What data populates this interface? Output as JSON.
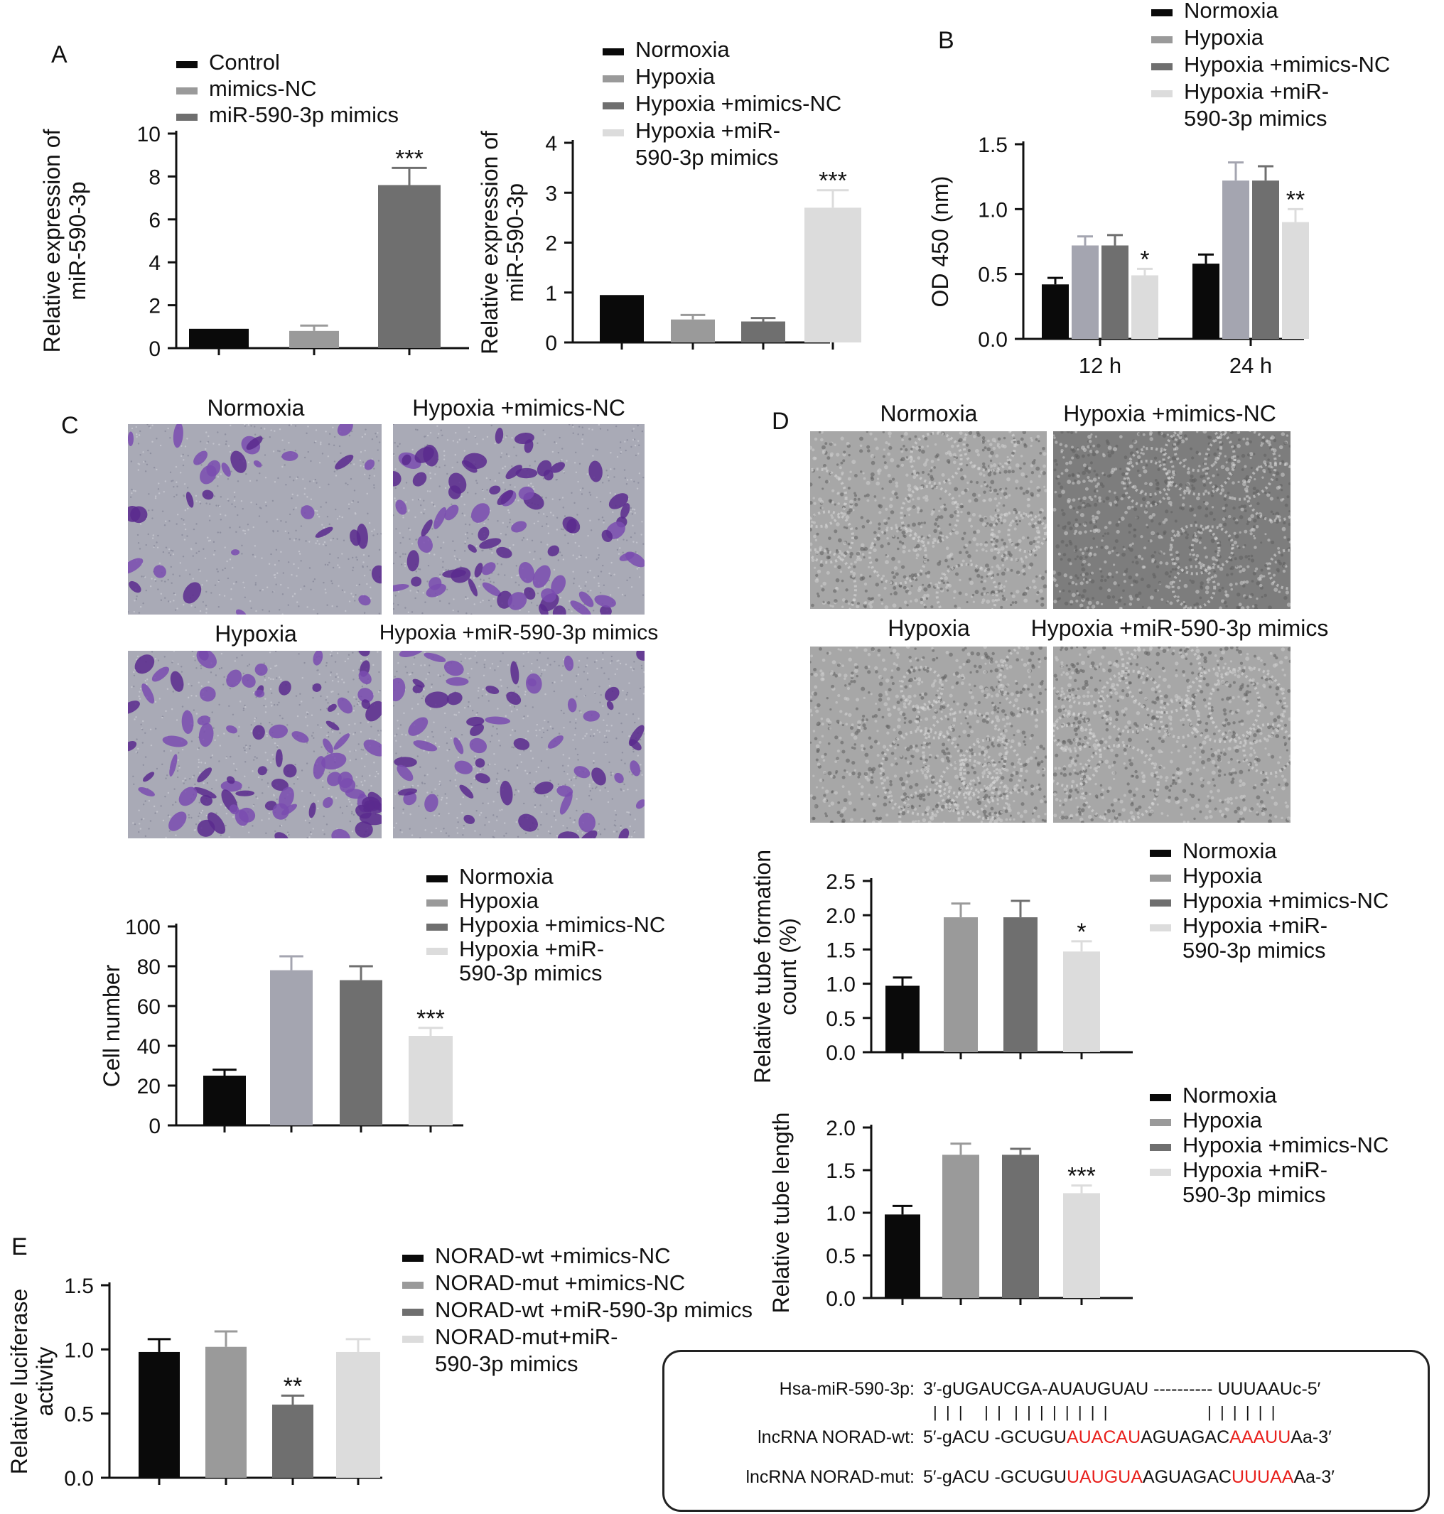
{
  "panels": {
    "A": "A",
    "B": "B",
    "C": "C",
    "D": "D",
    "E": "E"
  },
  "colors": {
    "black": "#0a0a0a",
    "lightgray": "#9a9a9a",
    "darkgray": "#6f6f6f",
    "verylight": "#dcdcdc",
    "bluegray": "#a4a5b0",
    "purple": "#5b2a8e"
  },
  "charts": [
    {
      "id": "a1",
      "type": "bar",
      "ylabel": [
        "Relative expression of",
        "miR-590-3p"
      ],
      "yticks": [
        0,
        2,
        4,
        6,
        8,
        10
      ],
      "ylim": [
        0,
        10
      ],
      "legend": [
        "Control",
        "mimics-NC",
        "miR-590-3p mimics"
      ],
      "bars": [
        {
          "v": 0.9,
          "e": 0,
          "c": "black"
        },
        {
          "v": 0.8,
          "e": 0.25,
          "c": "lightgray"
        },
        {
          "v": 7.6,
          "e": 0.8,
          "c": "darkgray",
          "sig": "***"
        }
      ]
    },
    {
      "id": "a2",
      "type": "bar",
      "ylabel": [
        "Relative expression of",
        "miR-590-3p"
      ],
      "yticks": [
        0,
        1,
        2,
        3,
        4
      ],
      "ylim": [
        0,
        4
      ],
      "legend": [
        "Normoxia",
        "Hypoxia",
        "Hypoxia +mimics-NC",
        "Hypoxia +miR-",
        "590-3p mimics"
      ],
      "bars": [
        {
          "v": 0.95,
          "e": 0,
          "c": "black"
        },
        {
          "v": 0.46,
          "e": 0.09,
          "c": "lightgray"
        },
        {
          "v": 0.42,
          "e": 0.07,
          "c": "darkgray"
        },
        {
          "v": 2.7,
          "e": 0.35,
          "c": "verylight",
          "sig": "***"
        }
      ]
    },
    {
      "id": "b",
      "type": "grouped-bar",
      "ylabel": [
        "OD 450 (nm)"
      ],
      "yticks": [
        "0.0",
        "0.5",
        "1.0",
        "1.5"
      ],
      "ylim": [
        0,
        1.5
      ],
      "categories": [
        "12 h",
        "24 h"
      ],
      "legend": [
        "Normoxia",
        "Hypoxia",
        "Hypoxia +mimics-NC",
        "Hypoxia +miR-",
        "590-3p mimics"
      ],
      "series": [
        {
          "values": [
            0.42,
            0.58
          ],
          "errors": [
            0.05,
            0.07
          ],
          "c": "black"
        },
        {
          "values": [
            0.72,
            1.22
          ],
          "errors": [
            0.07,
            0.14
          ],
          "c": "bluegray"
        },
        {
          "values": [
            0.72,
            1.22
          ],
          "errors": [
            0.08,
            0.11
          ],
          "c": "darkgray"
        },
        {
          "values": [
            0.49,
            0.9
          ],
          "errors": [
            0.05,
            0.1
          ],
          "c": "verylight",
          "sig": [
            "*",
            "**"
          ]
        }
      ]
    },
    {
      "id": "c",
      "type": "bar",
      "ylabel": [
        "Cell number"
      ],
      "yticks": [
        0,
        20,
        40,
        60,
        80,
        100
      ],
      "ylim": [
        0,
        100
      ],
      "legend": [
        "Normoxia",
        "Hypoxia",
        "Hypoxia +mimics-NC",
        "Hypoxia +miR-",
        "590-3p mimics"
      ],
      "bars": [
        {
          "v": 25,
          "e": 3,
          "c": "black"
        },
        {
          "v": 78,
          "e": 7,
          "c": "bluegray"
        },
        {
          "v": 73,
          "e": 7,
          "c": "darkgray"
        },
        {
          "v": 45,
          "e": 4,
          "c": "verylight",
          "sig": "***"
        }
      ]
    },
    {
      "id": "d1",
      "type": "bar",
      "ylabel": [
        "Relative tube formation",
        "count (%)"
      ],
      "yticks": [
        "0.0",
        "0.5",
        "1.0",
        "1.5",
        "2.0",
        "2.5"
      ],
      "ylim": [
        0,
        2.5
      ],
      "legend": [
        "Normoxia",
        "Hypoxia",
        "Hypoxia +mimics-NC",
        "Hypoxia +miR-",
        "590-3p mimics"
      ],
      "bars": [
        {
          "v": 0.97,
          "e": 0.12,
          "c": "black"
        },
        {
          "v": 1.97,
          "e": 0.2,
          "c": "lightgray"
        },
        {
          "v": 1.97,
          "e": 0.24,
          "c": "darkgray"
        },
        {
          "v": 1.47,
          "e": 0.15,
          "c": "verylight",
          "sig": "*"
        }
      ]
    },
    {
      "id": "d2",
      "type": "bar",
      "ylabel": [
        "Relative tube length"
      ],
      "yticks": [
        "0.0",
        "0.5",
        "1.0",
        "1.5",
        "2.0"
      ],
      "ylim": [
        0,
        2
      ],
      "legend": [
        "Normoxia",
        "Hypoxia",
        "Hypoxia +mimics-NC",
        "Hypoxia +miR-",
        "590-3p mimics"
      ],
      "bars": [
        {
          "v": 0.98,
          "e": 0.1,
          "c": "black"
        },
        {
          "v": 1.68,
          "e": 0.13,
          "c": "lightgray"
        },
        {
          "v": 1.68,
          "e": 0.07,
          "c": "darkgray"
        },
        {
          "v": 1.23,
          "e": 0.09,
          "c": "verylight",
          "sig": "***"
        }
      ]
    },
    {
      "id": "e",
      "type": "bar",
      "ylabel": [
        "Relative luciferase",
        "activity"
      ],
      "yticks": [
        "0.0",
        "0.5",
        "1.0",
        "1.5"
      ],
      "ylim": [
        0,
        1.5
      ],
      "legend": [
        "NORAD-wt +mimics-NC",
        "NORAD-mut +mimics-NC",
        "NORAD-wt +miR-590-3p mimics",
        "NORAD-mut+miR-",
        "590-3p mimics"
      ],
      "bars": [
        {
          "v": 0.98,
          "e": 0.1,
          "c": "black"
        },
        {
          "v": 1.02,
          "e": 0.12,
          "c": "lightgray"
        },
        {
          "v": 0.57,
          "e": 0.07,
          "c": "darkgray",
          "sig": "**"
        },
        {
          "v": 0.98,
          "e": 0.1,
          "c": "verylight"
        }
      ]
    }
  ],
  "micrographs": {
    "c": [
      "Normoxia",
      "Hypoxia +mimics-NC",
      "Hypoxia",
      "Hypoxia +miR-590-3p mimics"
    ],
    "d": [
      "Normoxia",
      "Hypoxia +mimics-NC",
      "Hypoxia",
      "Hypoxia +miR-590-3p mimics"
    ]
  },
  "sequence": {
    "rows": [
      {
        "label": "Hsa-miR-590-3p:",
        "parts": [
          {
            "t": "3′-gUGAUCGA-AUAUGUAU ---------- UUUAAUc-5′",
            "red": false
          }
        ]
      },
      {
        "label": "",
        "parts": [
          {
            "t": "|  |  |     |  |   |  |  |  |  |  |  |  |                       |  |  |  |  |  |",
            "red": false
          }
        ]
      },
      {
        "label": "lncRNA NORAD-wt:",
        "parts": [
          {
            "t": "5′-gACU -GCUGU",
            "red": false
          },
          {
            "t": "AUACAU",
            "red": true
          },
          {
            "t": "AGUAGAC",
            "red": false
          },
          {
            "t": "AAAUU",
            "red": true
          },
          {
            "t": "Aa-3′",
            "red": false
          }
        ]
      },
      {
        "label": "lncRNA NORAD-mut:",
        "parts": [
          {
            "t": "5′-gACU -GCUGU",
            "red": false
          },
          {
            "t": "UAUGUA",
            "red": true
          },
          {
            "t": "AGUAGAC",
            "red": false
          },
          {
            "t": "UUUAA",
            "red": true
          },
          {
            "t": "Aa-3′",
            "red": false
          }
        ]
      }
    ]
  }
}
